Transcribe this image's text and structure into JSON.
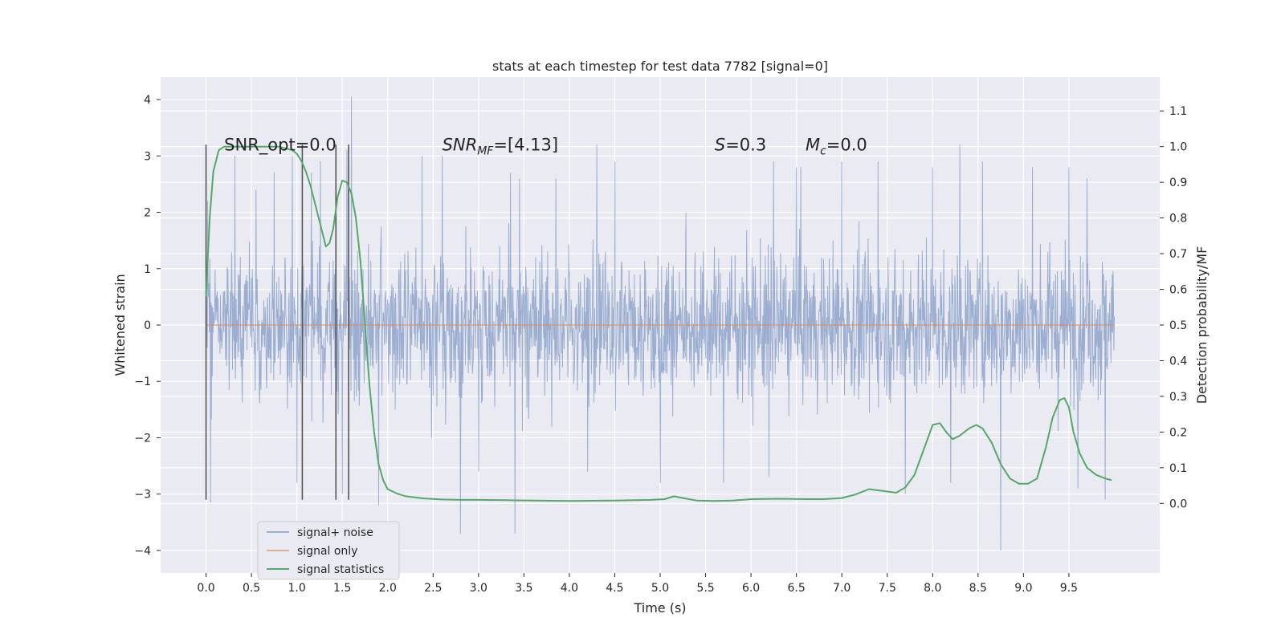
{
  "chart_data": {
    "type": "line",
    "title": "stats at each timestep for test data 7782 [signal=0]",
    "xlabel": "Time (s)",
    "ylabel": "Whitened strain",
    "ylabel_right": "Detection probability/MF",
    "xlim": [
      -0.5,
      10.5
    ],
    "ylim": [
      -4.4,
      4.4
    ],
    "ylim_right": [
      -0.195,
      1.195
    ],
    "x_ticks": [
      "0.0",
      "0.5",
      "1.0",
      "1.5",
      "2.0",
      "2.5",
      "3.0",
      "3.5",
      "4.0",
      "4.5",
      "5.0",
      "5.5",
      "6.0",
      "6.5",
      "7.0",
      "7.5",
      "8.0",
      "8.5",
      "9.0",
      "9.5"
    ],
    "y_ticks": [
      "−4",
      "−3",
      "−2",
      "−1",
      "0",
      "1",
      "2",
      "3",
      "4"
    ],
    "y_ticks_right": [
      "0.0",
      "0.1",
      "0.2",
      "0.3",
      "0.4",
      "0.5",
      "0.6",
      "0.7",
      "0.8",
      "0.9",
      "1.0",
      "1.1"
    ],
    "grid": true,
    "legend_position": "lower-left",
    "colors": {
      "noise": "#4c72b0",
      "signal": "#dd8452",
      "stats": "#55a868",
      "vline": "#555555",
      "background": "#eaeaf2",
      "grid": "#ffffff"
    },
    "annotations": [
      {
        "label": "SNR_opt=0.0",
        "x": 0.2,
        "y": 3.2
      },
      {
        "label": "SNR",
        "sub": "MF",
        "value": "=[4.13]",
        "x": 2.6,
        "y": 3.2
      },
      {
        "label": "S",
        "sub": "",
        "value": "=0.3",
        "x": 5.6,
        "y": 3.2
      },
      {
        "label": "M",
        "sub": "c",
        "value": "=0.0",
        "x": 6.6,
        "y": 3.2
      }
    ],
    "vertical_lines": [
      0.0,
      1.06,
      1.43,
      1.57
    ],
    "vertical_line_range": [
      -3.1,
      3.2
    ],
    "series": [
      {
        "name": "signal+ noise",
        "axis": "left",
        "x_range": [
          0.0,
          10.0
        ],
        "typical_band": [
          -1.3,
          1.3
        ],
        "peaks_up": [
          [
            0.02,
            2.2
          ],
          [
            0.32,
            3.0
          ],
          [
            0.55,
            2.4
          ],
          [
            0.75,
            2.7
          ],
          [
            0.95,
            3.0
          ],
          [
            1.16,
            2.7
          ],
          [
            1.26,
            2.9
          ],
          [
            1.6,
            4.05
          ],
          [
            1.55,
            3.1
          ],
          [
            2.38,
            3.0
          ],
          [
            2.6,
            3.0
          ],
          [
            2.8,
            2.6
          ],
          [
            3.35,
            2.7
          ],
          [
            3.45,
            2.6
          ],
          [
            3.85,
            2.6
          ],
          [
            4.3,
            3.2
          ],
          [
            4.5,
            2.9
          ],
          [
            5.0,
            2.9
          ],
          [
            5.7,
            2.9
          ],
          [
            6.25,
            2.9
          ],
          [
            6.5,
            2.8
          ],
          [
            6.55,
            2.8
          ],
          [
            7.0,
            2.9
          ],
          [
            7.4,
            2.9
          ],
          [
            8.0,
            2.8
          ],
          [
            8.3,
            3.2
          ],
          [
            8.55,
            2.9
          ],
          [
            9.1,
            2.8
          ],
          [
            9.5,
            2.8
          ],
          [
            9.7,
            2.6
          ]
        ],
        "peaks_down": [
          [
            0.05,
            -3.15
          ],
          [
            1.0,
            -2.8
          ],
          [
            1.5,
            -3.0
          ],
          [
            1.9,
            -3.2
          ],
          [
            2.8,
            -3.7
          ],
          [
            3.4,
            -3.7
          ],
          [
            3.0,
            -2.6
          ],
          [
            4.2,
            -2.6
          ],
          [
            5.0,
            -2.8
          ],
          [
            5.7,
            -2.8
          ],
          [
            6.2,
            -2.7
          ],
          [
            7.7,
            -3.0
          ],
          [
            8.2,
            -2.8
          ],
          [
            8.75,
            -4.0
          ],
          [
            9.6,
            -2.9
          ],
          [
            9.9,
            -3.1
          ]
        ]
      },
      {
        "name": "signal only",
        "axis": "left",
        "x": [
          0.0,
          10.0
        ],
        "values": [
          0.0,
          0.0
        ]
      },
      {
        "name": "signal statistics",
        "axis": "right",
        "x": [
          0.0,
          0.04,
          0.08,
          0.14,
          0.2,
          0.3,
          0.45,
          0.6,
          0.8,
          0.95,
          1.0,
          1.05,
          1.1,
          1.15,
          1.2,
          1.25,
          1.28,
          1.32,
          1.36,
          1.4,
          1.45,
          1.5,
          1.55,
          1.6,
          1.65,
          1.7,
          1.75,
          1.8,
          1.85,
          1.9,
          1.95,
          2.0,
          2.1,
          2.2,
          2.4,
          2.6,
          2.8,
          3.0,
          3.3,
          3.6,
          4.0,
          4.5,
          4.9,
          5.05,
          5.15,
          5.25,
          5.4,
          5.6,
          5.8,
          6.0,
          6.3,
          6.6,
          6.8,
          7.0,
          7.15,
          7.3,
          7.45,
          7.6,
          7.7,
          7.8,
          7.9,
          8.0,
          8.08,
          8.15,
          8.22,
          8.3,
          8.4,
          8.48,
          8.55,
          8.65,
          8.75,
          8.85,
          8.95,
          9.05,
          9.15,
          9.25,
          9.32,
          9.4,
          9.45,
          9.5,
          9.55,
          9.62,
          9.7,
          9.8,
          9.9,
          9.97
        ],
        "values": [
          0.58,
          0.8,
          0.93,
          0.99,
          1.0,
          1.0,
          1.0,
          1.0,
          1.0,
          0.99,
          0.98,
          0.96,
          0.93,
          0.89,
          0.84,
          0.79,
          0.76,
          0.72,
          0.73,
          0.77,
          0.86,
          0.905,
          0.9,
          0.87,
          0.8,
          0.68,
          0.5,
          0.33,
          0.2,
          0.11,
          0.065,
          0.04,
          0.028,
          0.02,
          0.014,
          0.011,
          0.01,
          0.01,
          0.009,
          0.008,
          0.007,
          0.008,
          0.01,
          0.012,
          0.02,
          0.015,
          0.008,
          0.007,
          0.008,
          0.012,
          0.013,
          0.012,
          0.012,
          0.015,
          0.025,
          0.04,
          0.035,
          0.03,
          0.045,
          0.08,
          0.15,
          0.22,
          0.225,
          0.2,
          0.18,
          0.19,
          0.21,
          0.22,
          0.21,
          0.17,
          0.11,
          0.07,
          0.055,
          0.055,
          0.07,
          0.16,
          0.24,
          0.29,
          0.295,
          0.27,
          0.2,
          0.14,
          0.1,
          0.08,
          0.07,
          0.065
        ]
      }
    ]
  }
}
